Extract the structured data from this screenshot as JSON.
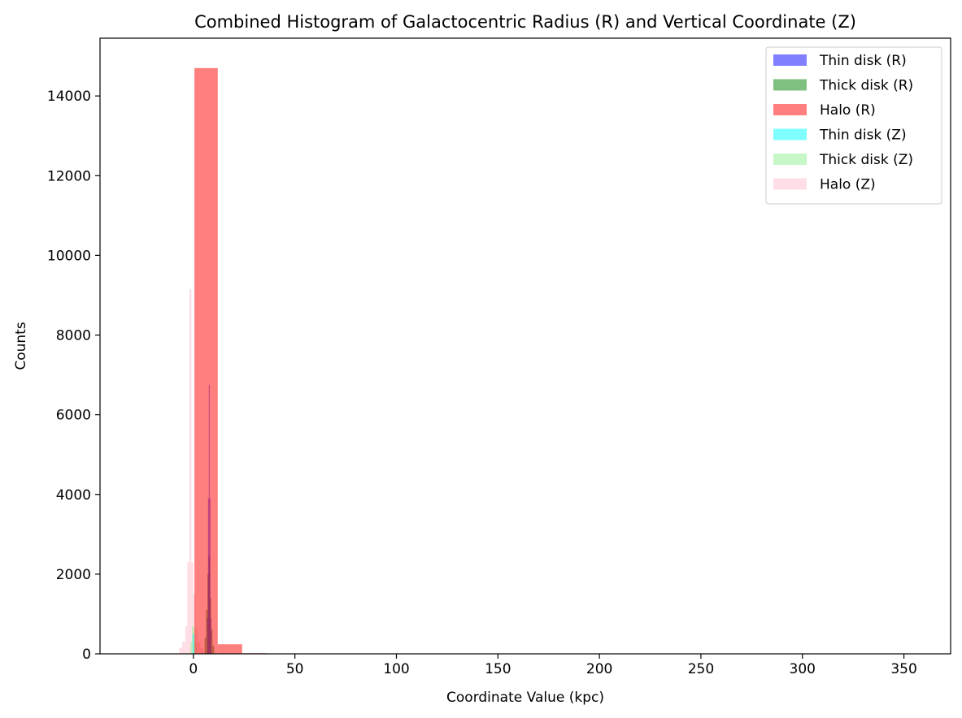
{
  "chart_data": {
    "type": "bar",
    "title": "Combined Histogram of Galactocentric Radius (R) and Vertical Coordinate (Z)",
    "xlabel": "Coordinate Value (kpc)",
    "ylabel": "Counts",
    "xlim": [
      -46,
      373
    ],
    "ylim": [
      0,
      15450
    ],
    "xticks": [
      0,
      50,
      100,
      150,
      200,
      250,
      300,
      350
    ],
    "yticks": [
      0,
      2000,
      4000,
      6000,
      8000,
      10000,
      12000,
      14000
    ],
    "grid": false,
    "legend_position": "top-right",
    "series": [
      {
        "name": "Halo (Z)",
        "color": "#ffc0cb",
        "opacity": 0.5,
        "bins": [
          {
            "x0": -7,
            "x1": -5.5,
            "count": 150
          },
          {
            "x0": -5.5,
            "x1": -4,
            "count": 300
          },
          {
            "x0": -4,
            "x1": -3,
            "count": 700
          },
          {
            "x0": -3,
            "x1": -2,
            "count": 2300
          },
          {
            "x0": -2,
            "x1": -1,
            "count": 9150
          },
          {
            "x0": -1,
            "x1": 0,
            "count": 2300
          },
          {
            "x0": 0,
            "x1": 1,
            "count": 1500
          },
          {
            "x0": 1,
            "x1": 2,
            "count": 650
          },
          {
            "x0": 2,
            "x1": 3.5,
            "count": 300
          },
          {
            "x0": 3.5,
            "x1": 5,
            "count": 150
          }
        ]
      },
      {
        "name": "Thick disk (Z)",
        "color": "#90ee90",
        "opacity": 0.5,
        "bins": [
          {
            "x0": -1.5,
            "x1": -0.75,
            "count": 300
          },
          {
            "x0": -0.75,
            "x1": 0,
            "count": 700
          },
          {
            "x0": 0,
            "x1": 0.75,
            "count": 650
          },
          {
            "x0": 0.75,
            "x1": 1.5,
            "count": 250
          }
        ]
      },
      {
        "name": "Thin disk (Z)",
        "color": "#00ffff",
        "opacity": 0.5,
        "bins": [
          {
            "x0": -0.4,
            "x1": 0,
            "count": 500
          },
          {
            "x0": 0,
            "x1": 0.4,
            "count": 480
          }
        ]
      },
      {
        "name": "Thick disk (R)",
        "color": "#008000",
        "opacity": 0.5,
        "bins": [
          {
            "x0": 5.5,
            "x1": 6.2,
            "count": 400
          },
          {
            "x0": 6.2,
            "x1": 6.9,
            "count": 1100
          },
          {
            "x0": 6.9,
            "x1": 7.5,
            "count": 2000
          },
          {
            "x0": 7.5,
            "x1": 8.1,
            "count": 2450
          },
          {
            "x0": 8.1,
            "x1": 8.7,
            "count": 1400
          },
          {
            "x0": 8.7,
            "x1": 9.4,
            "count": 600
          },
          {
            "x0": 9.4,
            "x1": 10.2,
            "count": 200
          }
        ]
      },
      {
        "name": "Thin disk (R)",
        "color": "#0000ff",
        "opacity": 0.5,
        "bins": [
          {
            "x0": 6.8,
            "x1": 7.2,
            "count": 900
          },
          {
            "x0": 7.2,
            "x1": 7.6,
            "count": 3900
          },
          {
            "x0": 7.6,
            "x1": 8.0,
            "count": 6750
          },
          {
            "x0": 8.0,
            "x1": 8.4,
            "count": 3900
          },
          {
            "x0": 8.4,
            "x1": 8.8,
            "count": 900
          }
        ]
      },
      {
        "name": "Halo (R)",
        "color": "#ff0000",
        "opacity": 0.5,
        "bins": [
          {
            "x0": 0.5,
            "x1": 12,
            "count": 14700
          },
          {
            "x0": 12,
            "x1": 24,
            "count": 240
          },
          {
            "x0": 24,
            "x1": 36,
            "count": 15
          },
          {
            "x0": 36,
            "x1": 48,
            "count": 4
          }
        ]
      }
    ],
    "legend": [
      {
        "label": "Thin disk (R)",
        "color": "#0000ff",
        "opacity": 0.5
      },
      {
        "label": "Thick disk (R)",
        "color": "#008000",
        "opacity": 0.5
      },
      {
        "label": "Halo (R)",
        "color": "#ff0000",
        "opacity": 0.5
      },
      {
        "label": "Thin disk (Z)",
        "color": "#00ffff",
        "opacity": 0.5
      },
      {
        "label": "Thick disk (Z)",
        "color": "#90ee90",
        "opacity": 0.5
      },
      {
        "label": "Halo (Z)",
        "color": "#ffc0cb",
        "opacity": 0.5
      }
    ]
  }
}
